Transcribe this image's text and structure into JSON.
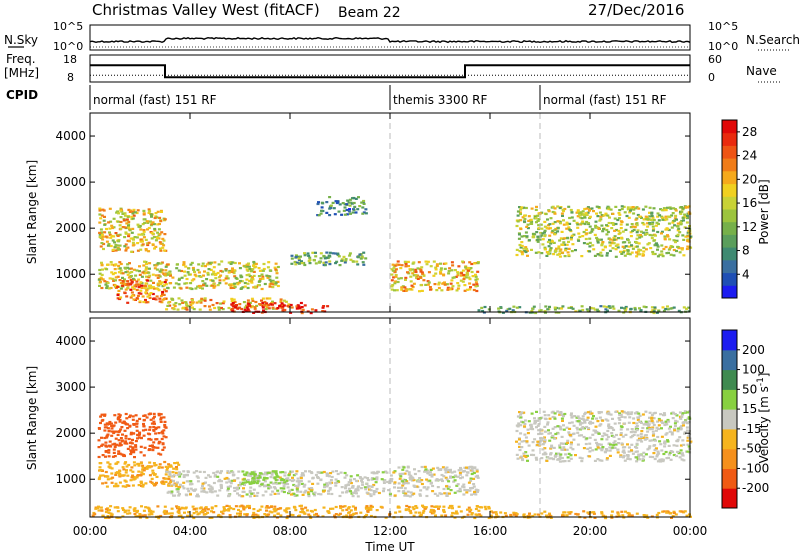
{
  "header": {
    "station": "Christmas Valley West (fitACF)",
    "beam": "Beam 22",
    "date": "27/Dec/2016"
  },
  "side_labels": {
    "nsky": "N.Sky",
    "nsearch": "N.Search",
    "freq_line1": "Freq.",
    "freq_line2": "[MHz]",
    "nave": "Nave",
    "cpid": "CPID"
  },
  "noise_panel": {
    "left_ticks": [
      "10^5",
      "10^0"
    ],
    "right_ticks": [
      "10^5",
      "10^0"
    ]
  },
  "freq_panel": {
    "left_ticks": [
      "18",
      "8"
    ],
    "right_ticks": [
      "60",
      "0"
    ],
    "freq_mhz": [
      {
        "t_start": 0,
        "t_end": 3,
        "value": 13.5
      },
      {
        "t_start": 3,
        "t_end": 15,
        "value": 9.0
      },
      {
        "t_start": 15,
        "t_end": 24,
        "value": 13.5
      }
    ],
    "nave_mean": 15
  },
  "cpid": [
    {
      "label": "normal (fast) 151 RF",
      "t_start": 0,
      "t_end": 12
    },
    {
      "label": "themis 3300 RF",
      "t_start": 12,
      "t_end": 18
    },
    {
      "label": "normal (fast) 151 RF",
      "t_start": 18,
      "t_end": 24
    }
  ],
  "chart_data": [
    {
      "type": "heatmap",
      "name": "power",
      "ylabel": "Slant Range [km]",
      "ylim": [
        180,
        4500
      ],
      "yticks": [
        "1000",
        "2000",
        "3000",
        "4000"
      ],
      "xlim": [
        0,
        24
      ],
      "colorbar": {
        "label": "Power [dB]",
        "ticks": [
          "4",
          "8",
          "12",
          "16",
          "20",
          "24",
          "28"
        ],
        "range": [
          0,
          30
        ],
        "colors": [
          "#1c1cf0",
          "#1f4fb5",
          "#3a6fa0",
          "#3f8a72",
          "#5a9e5c",
          "#76b04a",
          "#9cc43e",
          "#c8d236",
          "#f0d020",
          "#f5a91c",
          "#f07c18",
          "#ee5414",
          "#e92a0e",
          "#e00808"
        ]
      },
      "regions": [
        {
          "t_start": 0.3,
          "t_end": 3.0,
          "r_low": 1500,
          "r_high": 2450,
          "level": 18
        },
        {
          "t_start": 0.3,
          "t_end": 7.5,
          "r_low": 700,
          "r_high": 1300,
          "level": 17
        },
        {
          "t_start": 1.0,
          "t_end": 3.0,
          "r_low": 400,
          "r_high": 900,
          "level": 23
        },
        {
          "t_start": 3.0,
          "t_end": 8.0,
          "r_low": 250,
          "r_high": 500,
          "level": 19
        },
        {
          "t_start": 5.5,
          "t_end": 9.5,
          "r_low": 180,
          "r_high": 400,
          "level": 28
        },
        {
          "t_start": 8.0,
          "t_end": 11.0,
          "r_low": 1200,
          "r_high": 1500,
          "level": 11
        },
        {
          "t_start": 9.0,
          "t_end": 11.0,
          "r_low": 2300,
          "r_high": 2700,
          "level": 8
        },
        {
          "t_start": 12.0,
          "t_end": 15.5,
          "r_low": 650,
          "r_high": 1300,
          "level": 19
        },
        {
          "t_start": 15.5,
          "t_end": 24.0,
          "r_low": 180,
          "r_high": 330,
          "level": 12
        },
        {
          "t_start": 17.0,
          "t_end": 24.0,
          "r_low": 1400,
          "r_high": 2500,
          "level": 15
        }
      ]
    },
    {
      "type": "heatmap",
      "name": "velocity",
      "ylabel": "Slant Range [km]",
      "xlabel": "Time UT",
      "ylim": [
        180,
        4500
      ],
      "yticks": [
        "1000",
        "2000",
        "3000",
        "4000"
      ],
      "xlim": [
        0,
        24
      ],
      "xticks": [
        "00:00",
        "04:00",
        "08:00",
        "12:00",
        "16:00",
        "20:00",
        "00:00"
      ],
      "colorbar": {
        "label": "Velocity [m s^-1]",
        "ticks": [
          "-200",
          "-100",
          "-50",
          "-15",
          "15",
          "50",
          "100",
          "200"
        ],
        "levels": [
          -250,
          -200,
          -100,
          -50,
          -15,
          15,
          50,
          100,
          200,
          250
        ],
        "colors": [
          "#e00808",
          "#f05a14",
          "#f5901c",
          "#f5b41e",
          "#c8c8c0",
          "#88d040",
          "#3f8a50",
          "#3a6fa0",
          "#1c1cf0"
        ]
      },
      "regions": [
        {
          "t_start": 0.3,
          "t_end": 3.0,
          "r_low": 1500,
          "r_high": 2450,
          "vel": -120
        },
        {
          "t_start": 0.3,
          "t_end": 3.5,
          "r_low": 850,
          "r_high": 1400,
          "vel": -40
        },
        {
          "t_start": 3.0,
          "t_end": 12.0,
          "r_low": 650,
          "r_high": 1200,
          "vel": 0
        },
        {
          "t_start": 6.0,
          "t_end": 8.0,
          "r_low": 900,
          "r_high": 1200,
          "vel": 30
        },
        {
          "t_start": 0.0,
          "t_end": 16.0,
          "r_low": 180,
          "r_high": 450,
          "vel": -40
        },
        {
          "t_start": 12.0,
          "t_end": 15.5,
          "r_low": 650,
          "r_high": 1300,
          "vel": 0
        },
        {
          "t_start": 17.0,
          "t_end": 24.0,
          "r_low": 1400,
          "r_high": 2500,
          "vel": 0
        },
        {
          "t_start": 16.0,
          "t_end": 24.0,
          "r_low": 180,
          "r_high": 330,
          "vel": -40
        }
      ]
    }
  ]
}
